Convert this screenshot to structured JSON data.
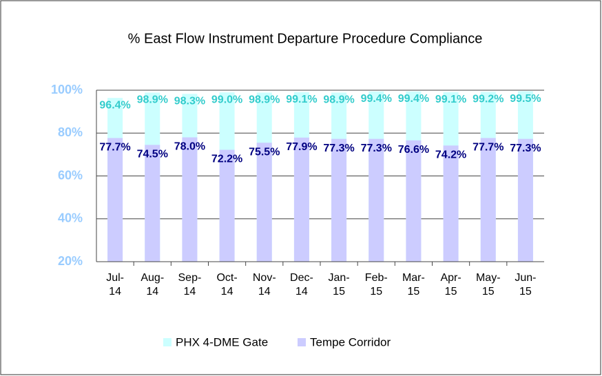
{
  "chart_data": {
    "type": "bar",
    "title": "% East Flow Instrument Departure Procedure Compliance",
    "categories": [
      "Jul-14",
      "Aug-14",
      "Sep-14",
      "Oct-14",
      "Nov-14",
      "Dec-14",
      "Jan-15",
      "Feb-15",
      "Mar-15",
      "Apr-15",
      "May-15",
      "Jun-15"
    ],
    "series": [
      {
        "name": "PHX 4-DME Gate",
        "color": "#ccffff",
        "label_color": "#33cccc",
        "values": [
          96.4,
          98.9,
          98.3,
          99.0,
          98.9,
          99.1,
          98.9,
          99.4,
          99.4,
          99.1,
          99.2,
          99.5
        ],
        "value_labels": [
          "96.4%",
          "98.9%",
          "98.3%",
          "99.0%",
          "98.9%",
          "99.1%",
          "98.9%",
          "99.4%",
          "99.4%",
          "99.1%",
          "99.2%",
          "99.5%"
        ]
      },
      {
        "name": "Tempe Corridor",
        "color": "#ccccff",
        "label_color": "#000080",
        "values": [
          77.7,
          74.5,
          78.0,
          72.2,
          75.5,
          77.9,
          77.3,
          77.3,
          76.6,
          74.2,
          77.7,
          77.3
        ],
        "value_labels": [
          "77.7%",
          "74.5%",
          "78.0%",
          "72.2%",
          "75.5%",
          "77.9%",
          "77.3%",
          "77.3%",
          "76.6%",
          "74.2%",
          "77.7%",
          "77.3%"
        ]
      }
    ],
    "ylim": [
      20,
      100
    ],
    "yticks": [
      {
        "value": 20,
        "label": "20%"
      },
      {
        "value": 40,
        "label": "40%"
      },
      {
        "value": 60,
        "label": "60%"
      },
      {
        "value": 80,
        "label": "80%"
      },
      {
        "value": 100,
        "label": "100%"
      }
    ],
    "grid": true,
    "legend": "bottom"
  }
}
